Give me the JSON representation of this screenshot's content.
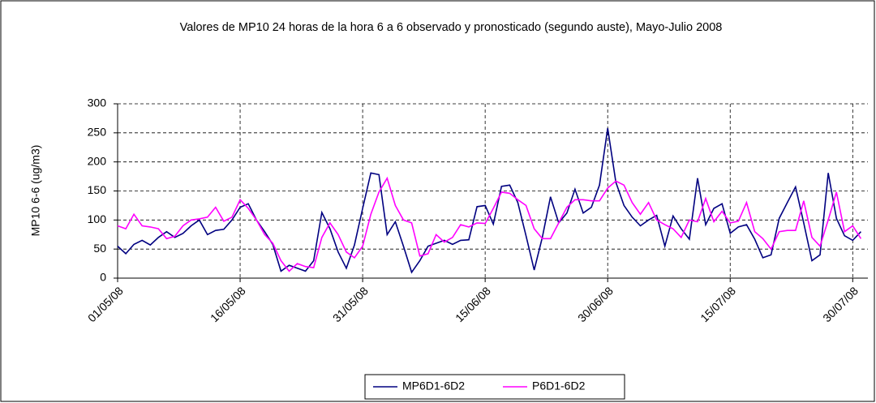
{
  "chart_data": {
    "type": "line",
    "title": "Valores de MP10 24 horas de la hora 6 a 6 observado y pronosticado (segundo auste), Mayo-Julio 2008",
    "y_label": "MP10 6-6 (ug/m3)",
    "categories": [
      "01/05/08",
      null,
      null,
      null,
      null,
      null,
      null,
      null,
      null,
      null,
      null,
      null,
      null,
      null,
      null,
      "16/05/08",
      null,
      null,
      null,
      null,
      null,
      null,
      null,
      null,
      null,
      null,
      null,
      null,
      null,
      null,
      "31/05/08",
      null,
      null,
      null,
      null,
      null,
      null,
      null,
      null,
      null,
      null,
      null,
      null,
      null,
      null,
      "15/06/08",
      null,
      null,
      null,
      null,
      null,
      null,
      null,
      null,
      null,
      null,
      null,
      null,
      null,
      null,
      "30/06/08",
      null,
      null,
      null,
      null,
      null,
      null,
      null,
      null,
      null,
      null,
      null,
      null,
      null,
      null,
      "15/07/08",
      null,
      null,
      null,
      null,
      null,
      null,
      null,
      null,
      null,
      null,
      null,
      null,
      null,
      null,
      "30/07/08",
      null
    ],
    "series": [
      {
        "name": "MP6D1-6D2",
        "color": "#000080",
        "values": [
          55,
          42,
          58,
          65,
          57,
          70,
          80,
          70,
          77,
          90,
          100,
          75,
          82,
          84,
          100,
          122,
          128,
          100,
          80,
          58,
          12,
          22,
          17,
          12,
          30,
          113,
          85,
          45,
          17,
          57,
          120,
          181,
          178,
          75,
          97,
          55,
          10,
          30,
          55,
          60,
          65,
          58,
          65,
          66,
          123,
          125,
          93,
          158,
          160,
          130,
          73,
          14,
          70,
          140,
          95,
          112,
          153,
          112,
          122,
          160,
          258,
          165,
          125,
          105,
          90,
          100,
          108,
          55,
          107,
          85,
          67,
          172,
          92,
          120,
          128,
          77,
          88,
          92,
          67,
          35,
          40,
          103,
          130,
          157,
          95,
          30,
          40,
          181,
          103,
          73,
          65,
          80
        ]
      },
      {
        "name": "P6D1-6D2",
        "color": "#ff00ff",
        "values": [
          90,
          85,
          110,
          90,
          88,
          85,
          68,
          72,
          90,
          100,
          102,
          105,
          122,
          98,
          105,
          135,
          120,
          100,
          75,
          60,
          30,
          12,
          25,
          20,
          18,
          70,
          95,
          75,
          45,
          35,
          55,
          110,
          148,
          172,
          125,
          100,
          95,
          38,
          42,
          75,
          62,
          70,
          92,
          88,
          95,
          94,
          120,
          148,
          146,
          135,
          125,
          85,
          68,
          68,
          95,
          122,
          135,
          135,
          133,
          133,
          155,
          167,
          160,
          130,
          110,
          130,
          100,
          92,
          85,
          70,
          100,
          97,
          137,
          97,
          115,
          95,
          98,
          130,
          80,
          68,
          50,
          80,
          82,
          82,
          133,
          70,
          55,
          100,
          148,
          80,
          90,
          68
        ]
      }
    ],
    "ylim": [
      0,
      300
    ],
    "yticks": [
      0,
      50,
      100,
      150,
      200,
      250,
      300
    ],
    "grid": true
  }
}
